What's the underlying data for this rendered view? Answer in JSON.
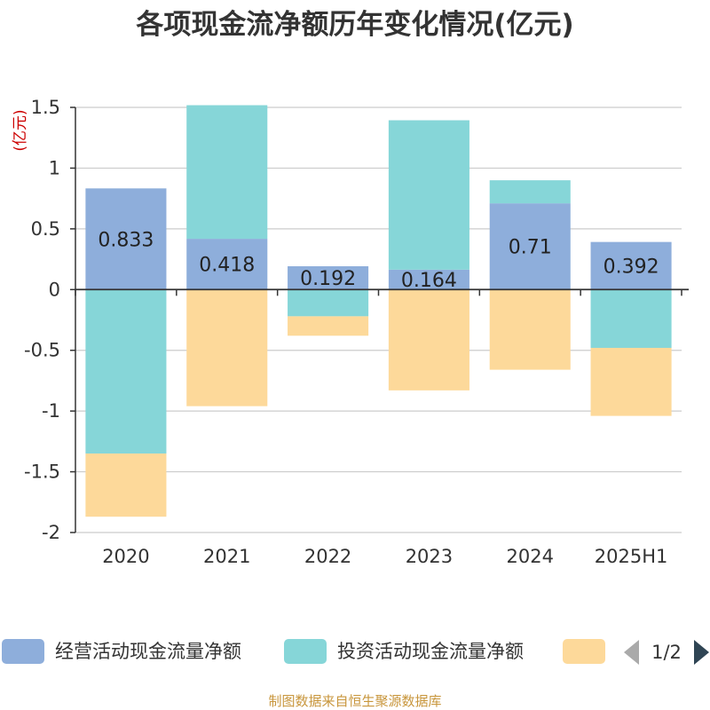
{
  "chart_data": {
    "type": "bar",
    "stacked": true,
    "title": "各项现金流净额历年变化情况(亿元)",
    "unit_label": "(亿元)",
    "categories": [
      "2020",
      "2021",
      "2022",
      "2023",
      "2024",
      "2025H1"
    ],
    "ylim": [
      -2,
      1.5
    ],
    "yticks": [
      1.5,
      1,
      0.5,
      0,
      -0.5,
      -1,
      -1.5,
      -2
    ],
    "ytick_labels": [
      "1.5",
      "1",
      "0.5",
      "0",
      "-0.5",
      "-1",
      "-1.5",
      "-2"
    ],
    "grid": true,
    "legend_position": "bottom",
    "series": [
      {
        "name": "经营活动现金流量净额",
        "color": "#8eaedb",
        "values": [
          0.833,
          0.418,
          0.192,
          0.164,
          0.71,
          0.392
        ],
        "labels": [
          "0.833",
          "0.418",
          "0.192",
          "0.164",
          "0.71",
          "0.392"
        ]
      },
      {
        "name": "投资活动现金流量净额",
        "color": "#86d6d8",
        "values": [
          -1.35,
          1.1,
          -0.22,
          1.23,
          0.19,
          -0.48
        ]
      },
      {
        "name": "",
        "color": "#fdd99a",
        "values": [
          -0.52,
          -0.96,
          -0.16,
          -0.83,
          -0.66,
          -0.56
        ]
      }
    ]
  },
  "legend": {
    "page_indicator": "1/2"
  },
  "footer": {
    "source": "制图数据来自恒生聚源数据库"
  }
}
